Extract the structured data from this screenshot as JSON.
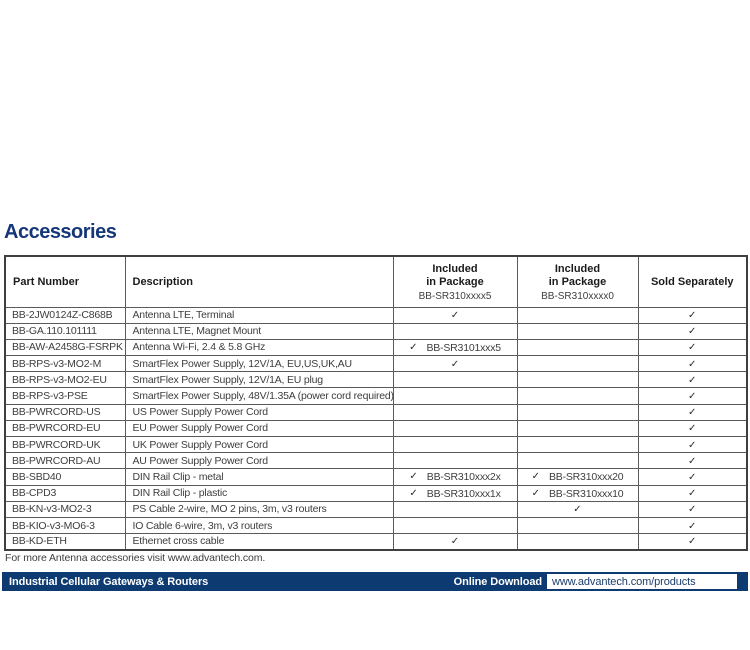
{
  "page": {
    "title": "Accessories",
    "footnote": "For more Antenna accessories visit www.advantech.com."
  },
  "colors": {
    "navy": "#0d3a70",
    "title_navy": "#15377a",
    "table_border": "#5a5a5a",
    "text": "#3e3e3e"
  },
  "table": {
    "check_glyph": "✓",
    "columns": {
      "part": "Part Number",
      "description": "Description",
      "pkg5": {
        "line1": "Included",
        "line2": "in Package",
        "sub": "BB-SR310xxxx5"
      },
      "pkg0": {
        "line1": "Included",
        "line2": "in Package",
        "sub": "BB-SR310xxxx0"
      },
      "sold": "Sold Separately"
    },
    "rows": [
      {
        "part": "BB-2JW0124Z-C868B",
        "desc": "Antenna LTE, Terminal",
        "pkg5": {
          "check": true,
          "label": ""
        },
        "pkg0": {
          "check": false,
          "label": ""
        },
        "sold": {
          "check": true,
          "label": ""
        }
      },
      {
        "part": "BB-GA.110.101111",
        "desc": "Antenna LTE, Magnet Mount",
        "pkg5": {
          "check": false,
          "label": ""
        },
        "pkg0": {
          "check": false,
          "label": ""
        },
        "sold": {
          "check": true,
          "label": ""
        }
      },
      {
        "part": "BB-AW-A2458G-FSRPK",
        "desc": "Antenna Wi-Fi, 2.4 & 5.8 GHz",
        "pkg5": {
          "check": true,
          "label": "BB-SR3101xxx5"
        },
        "pkg0": {
          "check": false,
          "label": ""
        },
        "sold": {
          "check": true,
          "label": ""
        }
      },
      {
        "part": "BB-RPS-v3-MO2-M",
        "desc": "SmartFlex Power Supply, 12V/1A, EU,US,UK,AU",
        "pkg5": {
          "check": true,
          "label": ""
        },
        "pkg0": {
          "check": false,
          "label": ""
        },
        "sold": {
          "check": true,
          "label": ""
        }
      },
      {
        "part": "BB-RPS-v3-MO2-EU",
        "desc": "SmartFlex Power Supply, 12V/1A, EU plug",
        "pkg5": {
          "check": false,
          "label": ""
        },
        "pkg0": {
          "check": false,
          "label": ""
        },
        "sold": {
          "check": true,
          "label": ""
        }
      },
      {
        "part": "BB-RPS-v3-PSE",
        "desc": "SmartFlex Power Supply, 48V/1.35A (power cord required)",
        "pkg5": {
          "check": false,
          "label": ""
        },
        "pkg0": {
          "check": false,
          "label": ""
        },
        "sold": {
          "check": true,
          "label": ""
        }
      },
      {
        "part": "BB-PWRCORD-US",
        "desc": "US Power Supply Power Cord",
        "pkg5": {
          "check": false,
          "label": ""
        },
        "pkg0": {
          "check": false,
          "label": ""
        },
        "sold": {
          "check": true,
          "label": ""
        }
      },
      {
        "part": "BB-PWRCORD-EU",
        "desc": "EU Power Supply Power Cord",
        "pkg5": {
          "check": false,
          "label": ""
        },
        "pkg0": {
          "check": false,
          "label": ""
        },
        "sold": {
          "check": true,
          "label": ""
        }
      },
      {
        "part": "BB-PWRCORD-UK",
        "desc": "UK Power Supply Power Cord",
        "pkg5": {
          "check": false,
          "label": ""
        },
        "pkg0": {
          "check": false,
          "label": ""
        },
        "sold": {
          "check": true,
          "label": ""
        }
      },
      {
        "part": "BB-PWRCORD-AU",
        "desc": "AU Power Supply Power Cord",
        "pkg5": {
          "check": false,
          "label": ""
        },
        "pkg0": {
          "check": false,
          "label": ""
        },
        "sold": {
          "check": true,
          "label": ""
        }
      },
      {
        "part": "BB-SBD40",
        "desc": "DIN Rail Clip - metal",
        "pkg5": {
          "check": true,
          "label": "BB-SR310xxx2x"
        },
        "pkg0": {
          "check": true,
          "label": "BB-SR310xxx20"
        },
        "sold": {
          "check": true,
          "label": ""
        }
      },
      {
        "part": "BB-CPD3",
        "desc": "DIN Rail Clip - plastic",
        "pkg5": {
          "check": true,
          "label": "BB-SR310xxx1x"
        },
        "pkg0": {
          "check": true,
          "label": "BB-SR310xxx10"
        },
        "sold": {
          "check": true,
          "label": ""
        }
      },
      {
        "part": "BB-KN-v3-MO2-3",
        "desc": "PS Cable 2-wire, MO 2 pins, 3m, v3 routers",
        "pkg5": {
          "check": false,
          "label": ""
        },
        "pkg0": {
          "check": true,
          "label": ""
        },
        "sold": {
          "check": true,
          "label": ""
        }
      },
      {
        "part": "BB-KIO-v3-MO6-3",
        "desc": "IO Cable 6-wire, 3m, v3 routers",
        "pkg5": {
          "check": false,
          "label": ""
        },
        "pkg0": {
          "check": false,
          "label": ""
        },
        "sold": {
          "check": true,
          "label": ""
        }
      },
      {
        "part": "BB-KD-ETH",
        "desc": "Ethernet cross cable",
        "pkg5": {
          "check": true,
          "label": ""
        },
        "pkg0": {
          "check": false,
          "label": ""
        },
        "sold": {
          "check": true,
          "label": ""
        }
      }
    ]
  },
  "footer": {
    "product_line": "Industrial Cellular Gateways & Routers",
    "download_label": "Online Download",
    "download_url": "www.advantech.com/products"
  }
}
